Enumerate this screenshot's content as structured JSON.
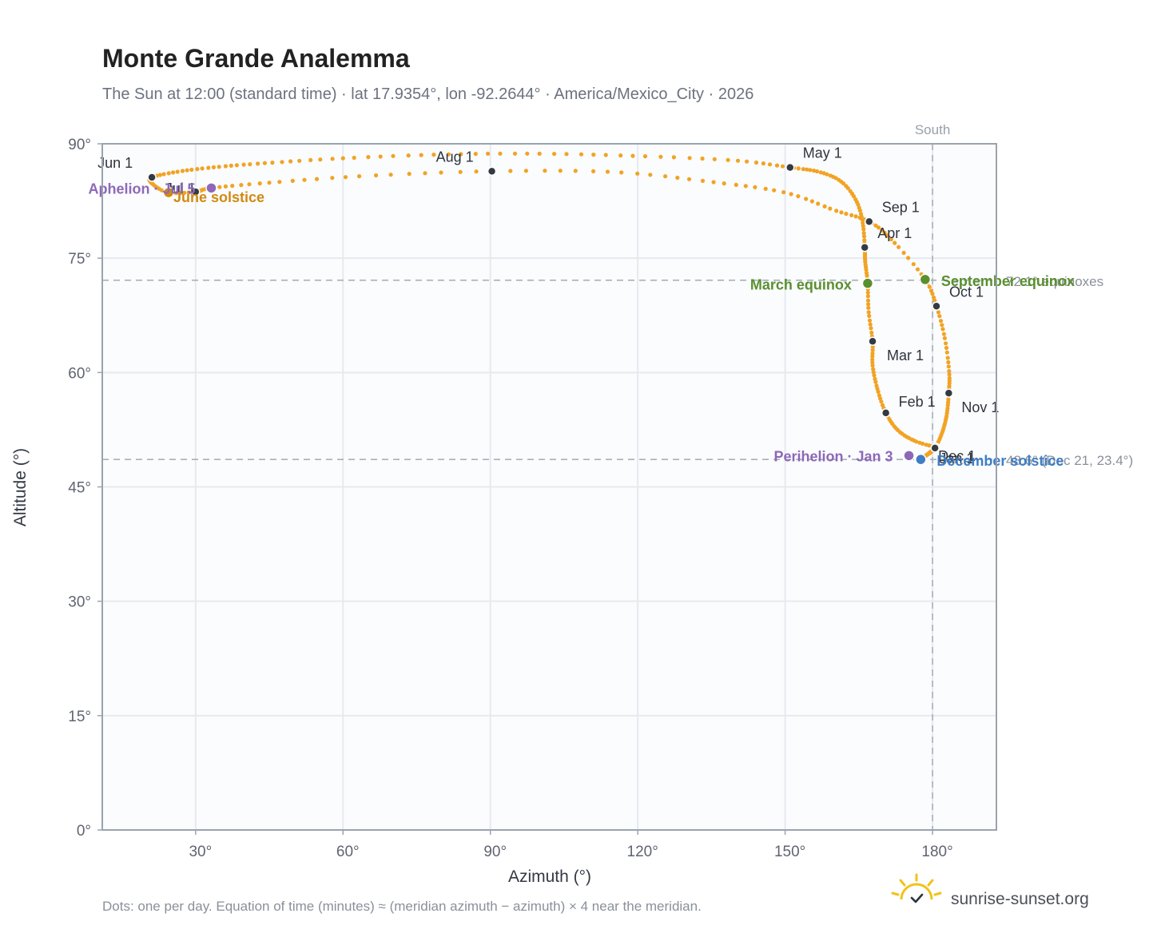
{
  "title": "Monte Grande Analemma",
  "subtitle": "The Sun at 12:00 (standard time) · lat 17.9354°, lon -92.2644° · America/Mexico_City · 2026",
  "footnote": "Dots: one per day. Equation of time (minutes) ≈ (meridian azimuth − azimuth) × 4 near the meridian.",
  "brand": {
    "name": "sunrise-sunset.org",
    "icon": "sun-check-logo-icon"
  },
  "colors": {
    "path": "#f2a324",
    "month_marker": "#343a44",
    "equinox": "#5a8f2e",
    "solstice_june": "#d18a12",
    "solstice_december": "#3f7ec4",
    "apsis": "#8d68b8",
    "reference_line": "#a9b1bb",
    "plot_bg": "#fafcfe",
    "grid": "#e6eaef",
    "frame": "#9aa3ae"
  },
  "chart_data": {
    "type": "scatter",
    "title": "Monte Grande Analemma",
    "xlabel": "Azimuth (°)",
    "ylabel": "Altitude (°)",
    "xlim": [
      11,
      193
    ],
    "ylim": [
      0,
      90
    ],
    "x_ticks": [
      30,
      60,
      90,
      120,
      150,
      180
    ],
    "x_tick_labels": [
      "30°",
      "60°",
      "90°",
      "120°",
      "150°",
      "180°"
    ],
    "y_ticks": [
      0,
      15,
      30,
      45,
      60,
      75,
      90
    ],
    "y_tick_labels": [
      "0°",
      "15°",
      "30°",
      "45°",
      "60°",
      "75°",
      "90°"
    ],
    "grid": true,
    "south_line": {
      "azimuth": 180,
      "label": "South"
    },
    "reference_lines": [
      {
        "altitude": 72.1,
        "label": "72.1° equinoxes"
      },
      {
        "altitude": 48.6,
        "label": "48.6° (Dec 21, 23.4°)"
      }
    ],
    "month_markers": [
      {
        "label": "Jan 1",
        "azimuth": 180.7,
        "altitude": 50.2
      },
      {
        "label": "Feb 1",
        "azimuth": 170.5,
        "altitude": 54.7
      },
      {
        "label": "Mar 1",
        "azimuth": 167.8,
        "altitude": 64.1
      },
      {
        "label": "Apr 1",
        "azimuth": 166.2,
        "altitude": 76.4
      },
      {
        "label": "May 1",
        "azimuth": 151.0,
        "altitude": 86.9
      },
      {
        "label": "Jun 1",
        "azimuth": 21.1,
        "altitude": 85.6
      },
      {
        "label": "Jul 1",
        "azimuth": 30.0,
        "altitude": 83.7
      },
      {
        "label": "Aug 1",
        "azimuth": 90.3,
        "altitude": 86.4
      },
      {
        "label": "Sep 1",
        "azimuth": 167.1,
        "altitude": 79.8
      },
      {
        "label": "Oct 1",
        "azimuth": 180.8,
        "altitude": 68.7
      },
      {
        "label": "Nov 1",
        "azimuth": 183.3,
        "altitude": 57.3
      },
      {
        "label": "Dec 1",
        "azimuth": 180.5,
        "altitude": 50.1
      }
    ],
    "events": [
      {
        "label": "March equinox",
        "azimuth": 166.8,
        "altitude": 71.7,
        "kind": "equinox"
      },
      {
        "label": "September equinox",
        "azimuth": 178.5,
        "altitude": 72.2,
        "kind": "equinox"
      },
      {
        "label": "June solstice",
        "azimuth": 24.5,
        "altitude": 83.6,
        "kind": "solstice_june"
      },
      {
        "label": "December solstice",
        "azimuth": 177.6,
        "altitude": 48.6,
        "kind": "solstice_december"
      },
      {
        "label": "Perihelion · Jan 3",
        "azimuth": 175.2,
        "altitude": 49.1,
        "kind": "apsis"
      },
      {
        "label": "Aphelion · Jul 5",
        "azimuth": 33.2,
        "altitude": 84.2,
        "kind": "apsis"
      }
    ],
    "daily_path_anchors": [
      [
        180.7,
        50.2
      ],
      [
        176.5,
        51.0
      ],
      [
        173.0,
        52.4
      ],
      [
        170.5,
        54.7
      ],
      [
        168.8,
        57.8
      ],
      [
        167.8,
        61.0
      ],
      [
        167.8,
        64.1
      ],
      [
        167.0,
        68.0
      ],
      [
        166.8,
        71.7
      ],
      [
        166.3,
        74.5
      ],
      [
        166.2,
        76.4
      ],
      [
        165.8,
        79.6
      ],
      [
        164.5,
        82.5
      ],
      [
        161.5,
        85.0
      ],
      [
        157.0,
        86.3
      ],
      [
        151.0,
        86.9
      ],
      [
        140.0,
        87.8
      ],
      [
        120.0,
        88.4
      ],
      [
        100.0,
        88.7
      ],
      [
        80.0,
        88.6
      ],
      [
        60.0,
        88.1
      ],
      [
        45.0,
        87.5
      ],
      [
        35.0,
        87.0
      ],
      [
        27.0,
        86.4
      ],
      [
        21.1,
        85.6
      ],
      [
        21.3,
        84.7
      ],
      [
        24.5,
        83.6
      ],
      [
        30.0,
        83.7
      ],
      [
        33.2,
        84.2
      ],
      [
        45.0,
        84.9
      ],
      [
        65.0,
        85.8
      ],
      [
        90.3,
        86.4
      ],
      [
        115.0,
        86.3
      ],
      [
        135.0,
        85.0
      ],
      [
        150.0,
        83.6
      ],
      [
        160.0,
        81.3
      ],
      [
        167.1,
        79.8
      ],
      [
        172.0,
        77.2
      ],
      [
        178.5,
        72.2
      ],
      [
        180.8,
        68.7
      ],
      [
        182.5,
        64.5
      ],
      [
        183.4,
        60.0
      ],
      [
        183.3,
        57.3
      ],
      [
        182.9,
        54.5
      ],
      [
        182.0,
        52.2
      ],
      [
        180.5,
        50.1
      ],
      [
        178.7,
        49.1
      ],
      [
        177.6,
        48.6
      ],
      [
        179.0,
        49.3
      ],
      [
        180.7,
        50.2
      ]
    ]
  }
}
